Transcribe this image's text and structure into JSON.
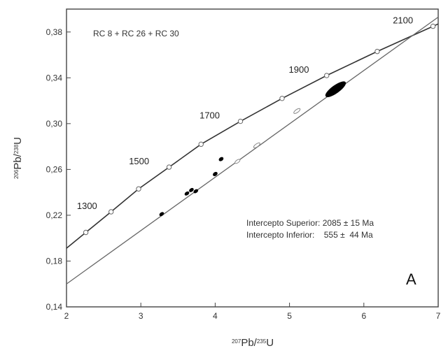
{
  "chart_data": {
    "type": "scatter",
    "title": "RC 8 + RC 26 + RC 30",
    "panel_label": "A",
    "xlabel": {
      "sup1": "207",
      "base1": "Pb/",
      "sup2": "235",
      "base2": "U"
    },
    "ylabel": {
      "sup1": "206",
      "base1": "Pb/",
      "sup2": "238",
      "base2": "U"
    },
    "xlim": [
      2,
      7
    ],
    "ylim": [
      0.14,
      0.4
    ],
    "xticks": [
      2,
      3,
      4,
      5,
      6,
      7
    ],
    "xtick_labels": [
      "2",
      "3",
      "4",
      "5",
      "6",
      "7"
    ],
    "yticks": [
      0.14,
      0.18,
      0.22,
      0.26,
      0.3,
      0.34,
      0.38
    ],
    "ytick_labels": [
      "0,14",
      "0,18",
      "0,22",
      "0,26",
      "0,30",
      "0,34",
      "0,38"
    ],
    "concordia_ticks": [
      {
        "x": 2.26,
        "y": 0.205
      },
      {
        "x": 2.6,
        "y": 0.223
      },
      {
        "x": 2.97,
        "y": 0.243
      },
      {
        "x": 3.38,
        "y": 0.262
      },
      {
        "x": 3.81,
        "y": 0.282
      },
      {
        "x": 4.34,
        "y": 0.302
      },
      {
        "x": 4.9,
        "y": 0.322
      },
      {
        "x": 5.5,
        "y": 0.342
      },
      {
        "x": 6.18,
        "y": 0.363
      },
      {
        "x": 6.93,
        "y": 0.385
      }
    ],
    "age_labels": [
      {
        "text": "1300",
        "x": 2.45,
        "y": 0.223
      },
      {
        "text": "1500",
        "x": 3.15,
        "y": 0.262
      },
      {
        "text": "1700",
        "x": 4.1,
        "y": 0.302
      },
      {
        "text": "1900",
        "x": 5.3,
        "y": 0.342
      },
      {
        "text": "2100",
        "x": 6.7,
        "y": 0.385
      }
    ],
    "discordia": {
      "x1": 2.0,
      "y1": 0.16,
      "x2": 7.0,
      "y2": 0.393
    },
    "data_ellipses": [
      {
        "x": 3.28,
        "y": 0.221,
        "rx": 0.03,
        "ry": 0.0012,
        "fill": "black"
      },
      {
        "x": 3.62,
        "y": 0.239,
        "rx": 0.03,
        "ry": 0.0012,
        "fill": "black"
      },
      {
        "x": 3.68,
        "y": 0.242,
        "rx": 0.03,
        "ry": 0.0012,
        "fill": "black"
      },
      {
        "x": 3.74,
        "y": 0.241,
        "rx": 0.03,
        "ry": 0.0012,
        "fill": "black"
      },
      {
        "x": 4.0,
        "y": 0.256,
        "rx": 0.03,
        "ry": 0.0013,
        "fill": "black"
      },
      {
        "x": 4.08,
        "y": 0.269,
        "rx": 0.03,
        "ry": 0.0013,
        "fill": "black"
      },
      {
        "x": 4.3,
        "y": 0.267,
        "rx": 0.04,
        "ry": 0.0012,
        "fill": "hollow"
      },
      {
        "x": 4.56,
        "y": 0.281,
        "rx": 0.05,
        "ry": 0.0013,
        "fill": "hollow"
      },
      {
        "x": 5.1,
        "y": 0.311,
        "rx": 0.05,
        "ry": 0.0013,
        "fill": "hollow"
      },
      {
        "x": 5.62,
        "y": 0.33,
        "rx": 0.16,
        "ry": 0.0032,
        "fill": "black"
      }
    ],
    "annotations": {
      "line1": "Intercepto Superior: 2085 ± 15 Ma",
      "line2": "Intercepto Inferior:    555 ±  44 Ma"
    }
  }
}
